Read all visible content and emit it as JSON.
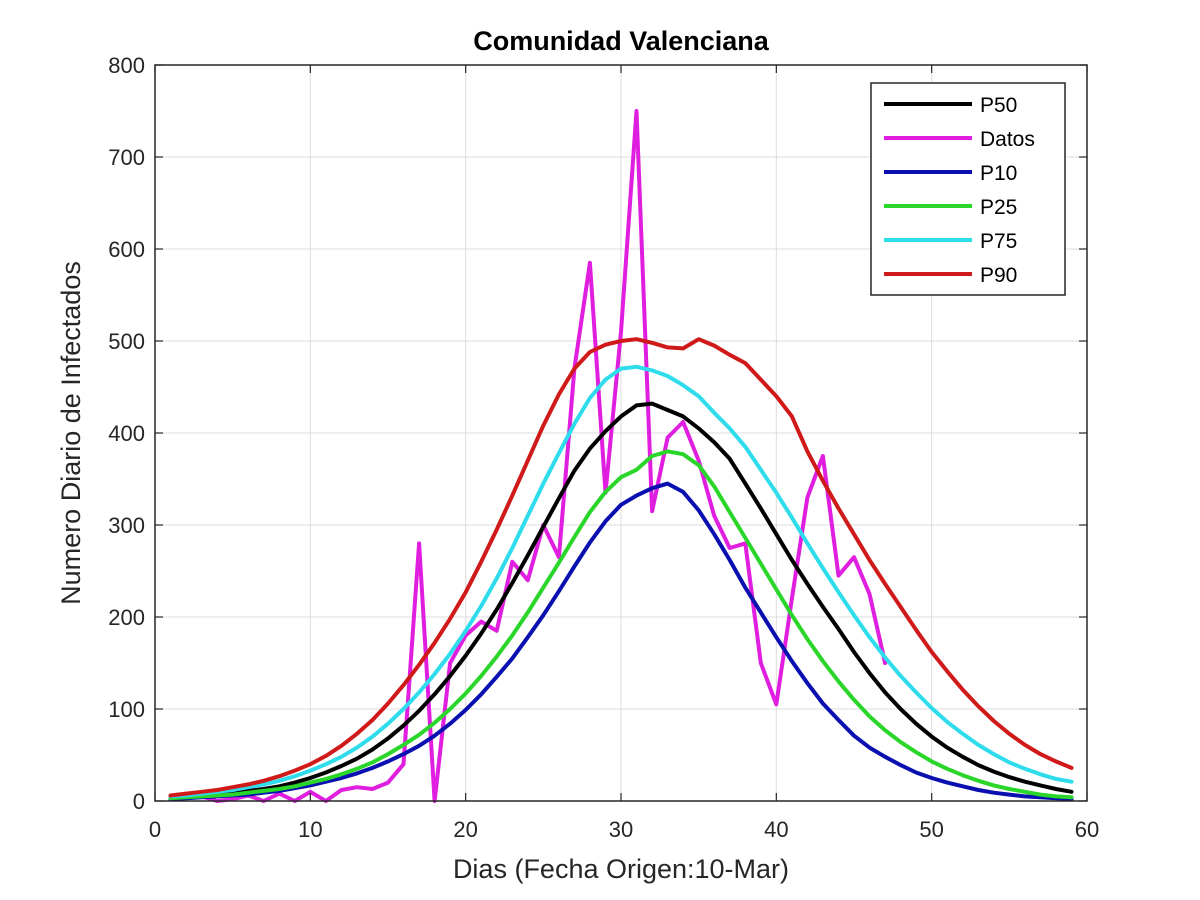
{
  "chart_data": {
    "type": "line",
    "title": "Comunidad Valenciana",
    "xlabel": "Dias (Fecha Origen:10-Mar)",
    "ylabel": "Numero Diario de Infectados",
    "xlim": [
      0,
      60
    ],
    "ylim": [
      0,
      800
    ],
    "xticks": [
      0,
      10,
      20,
      30,
      40,
      50,
      60
    ],
    "yticks": [
      0,
      100,
      200,
      300,
      400,
      500,
      600,
      700,
      800
    ],
    "grid": true,
    "legend_position": "top-right",
    "series": [
      {
        "name": "P50",
        "color": "#000000",
        "x": [
          1,
          2,
          3,
          4,
          5,
          6,
          7,
          8,
          9,
          10,
          11,
          12,
          13,
          14,
          15,
          16,
          17,
          18,
          19,
          20,
          21,
          22,
          23,
          24,
          25,
          26,
          27,
          28,
          29,
          30,
          31,
          32,
          33,
          34,
          35,
          36,
          37,
          38,
          39,
          40,
          41,
          42,
          43,
          44,
          45,
          46,
          47,
          48,
          49,
          50,
          51,
          52,
          53,
          54,
          55,
          56,
          57,
          58,
          59
        ],
        "y": [
          4,
          5,
          6,
          7,
          9,
          11,
          13,
          16,
          20,
          25,
          31,
          38,
          46,
          56,
          68,
          82,
          98,
          116,
          136,
          158,
          182,
          208,
          237,
          267,
          298,
          329,
          359,
          383,
          402,
          418,
          430,
          432,
          425,
          418,
          405,
          390,
          372,
          345,
          318,
          290,
          262,
          236,
          211,
          187,
          162,
          139,
          118,
          100,
          84,
          70,
          58,
          48,
          39,
          32,
          26,
          21,
          17,
          13,
          10
        ]
      },
      {
        "name": "Datos",
        "color": "#e01ee0",
        "x": [
          1,
          2,
          3,
          4,
          5,
          6,
          7,
          8,
          9,
          10,
          11,
          12,
          13,
          14,
          15,
          16,
          17,
          18,
          19,
          20,
          21,
          22,
          23,
          24,
          25,
          26,
          27,
          28,
          29,
          30,
          31,
          32,
          33,
          34,
          35,
          36,
          37,
          38,
          39,
          40,
          41,
          42,
          43,
          44,
          45,
          46,
          47
        ],
        "y": [
          3,
          5,
          5,
          0,
          2,
          6,
          0,
          8,
          0,
          10,
          0,
          12,
          15,
          13,
          20,
          40,
          280,
          0,
          150,
          180,
          195,
          185,
          260,
          240,
          300,
          265,
          470,
          585,
          335,
          510,
          750,
          315,
          395,
          412,
          370,
          310,
          275,
          280,
          150,
          105,
          220,
          330,
          375,
          245,
          265,
          225,
          150
        ]
      },
      {
        "name": "P10",
        "color": "#0a10b0",
        "x": [
          1,
          2,
          3,
          4,
          5,
          6,
          7,
          8,
          9,
          10,
          11,
          12,
          13,
          14,
          15,
          16,
          17,
          18,
          19,
          20,
          21,
          22,
          23,
          24,
          25,
          26,
          27,
          28,
          29,
          30,
          31,
          32,
          33,
          34,
          35,
          36,
          37,
          38,
          39,
          40,
          41,
          42,
          43,
          44,
          45,
          46,
          47,
          48,
          49,
          50,
          51,
          52,
          53,
          54,
          55,
          56,
          57,
          58,
          59
        ],
        "y": [
          2,
          3,
          4,
          5,
          6,
          7,
          9,
          11,
          14,
          17,
          21,
          25,
          30,
          36,
          43,
          51,
          60,
          71,
          84,
          99,
          116,
          135,
          155,
          178,
          202,
          228,
          255,
          281,
          304,
          322,
          332,
          340,
          345,
          336,
          316,
          290,
          262,
          232,
          205,
          178,
          152,
          128,
          106,
          88,
          71,
          58,
          48,
          39,
          31,
          25,
          20,
          16,
          12,
          9,
          7,
          5,
          4,
          3,
          2
        ]
      },
      {
        "name": "P25",
        "color": "#2ad62a",
        "x": [
          1,
          2,
          3,
          4,
          5,
          6,
          7,
          8,
          9,
          10,
          11,
          12,
          13,
          14,
          15,
          16,
          17,
          18,
          19,
          20,
          21,
          22,
          23,
          24,
          25,
          26,
          27,
          28,
          29,
          30,
          31,
          32,
          33,
          34,
          35,
          36,
          37,
          38,
          39,
          40,
          41,
          42,
          43,
          44,
          45,
          46,
          47,
          48,
          49,
          50,
          51,
          52,
          53,
          54,
          55,
          56,
          57,
          58,
          59
        ],
        "y": [
          3,
          4,
          5,
          6,
          7,
          9,
          11,
          13,
          16,
          20,
          24,
          29,
          35,
          42,
          51,
          61,
          72,
          85,
          100,
          117,
          136,
          157,
          180,
          205,
          232,
          259,
          287,
          314,
          336,
          352,
          360,
          375,
          380,
          377,
          365,
          342,
          314,
          286,
          258,
          230,
          202,
          176,
          152,
          130,
          110,
          92,
          77,
          64,
          53,
          43,
          35,
          28,
          22,
          17,
          13,
          10,
          7,
          5,
          4
        ]
      },
      {
        "name": "P75",
        "color": "#2edcec",
        "x": [
          1,
          2,
          3,
          4,
          5,
          6,
          7,
          8,
          9,
          10,
          11,
          12,
          13,
          14,
          15,
          16,
          17,
          18,
          19,
          20,
          21,
          22,
          23,
          24,
          25,
          26,
          27,
          28,
          29,
          30,
          31,
          32,
          33,
          34,
          35,
          36,
          37,
          38,
          39,
          40,
          41,
          42,
          43,
          44,
          45,
          46,
          47,
          48,
          49,
          50,
          51,
          52,
          53,
          54,
          55,
          56,
          57,
          58,
          59
        ],
        "y": [
          5,
          6,
          8,
          10,
          12,
          15,
          18,
          22,
          27,
          33,
          40,
          48,
          58,
          70,
          84,
          100,
          118,
          138,
          160,
          185,
          212,
          242,
          275,
          310,
          345,
          378,
          410,
          438,
          458,
          470,
          472,
          468,
          462,
          452,
          440,
          422,
          405,
          385,
          360,
          335,
          308,
          280,
          253,
          227,
          202,
          178,
          156,
          136,
          118,
          101,
          86,
          73,
          61,
          51,
          42,
          35,
          29,
          24,
          21
        ]
      },
      {
        "name": "P90",
        "color": "#d01a1a",
        "x": [
          1,
          2,
          3,
          4,
          5,
          6,
          7,
          8,
          9,
          10,
          11,
          12,
          13,
          14,
          15,
          16,
          17,
          18,
          19,
          20,
          21,
          22,
          23,
          24,
          25,
          26,
          27,
          28,
          29,
          30,
          31,
          32,
          33,
          34,
          35,
          36,
          37,
          38,
          39,
          40,
          41,
          42,
          43,
          44,
          45,
          46,
          47,
          48,
          49,
          50,
          51,
          52,
          53,
          54,
          55,
          56,
          57,
          58,
          59
        ],
        "y": [
          6,
          8,
          10,
          12,
          15,
          18,
          22,
          27,
          33,
          40,
          49,
          60,
          73,
          88,
          106,
          126,
          148,
          172,
          198,
          227,
          260,
          295,
          332,
          370,
          408,
          442,
          470,
          488,
          496,
          500,
          502,
          498,
          493,
          492,
          502,
          495,
          485,
          476,
          458,
          440,
          418,
          380,
          348,
          318,
          290,
          262,
          236,
          211,
          186,
          162,
          141,
          121,
          103,
          87,
          73,
          61,
          51,
          43,
          36
        ]
      }
    ]
  }
}
